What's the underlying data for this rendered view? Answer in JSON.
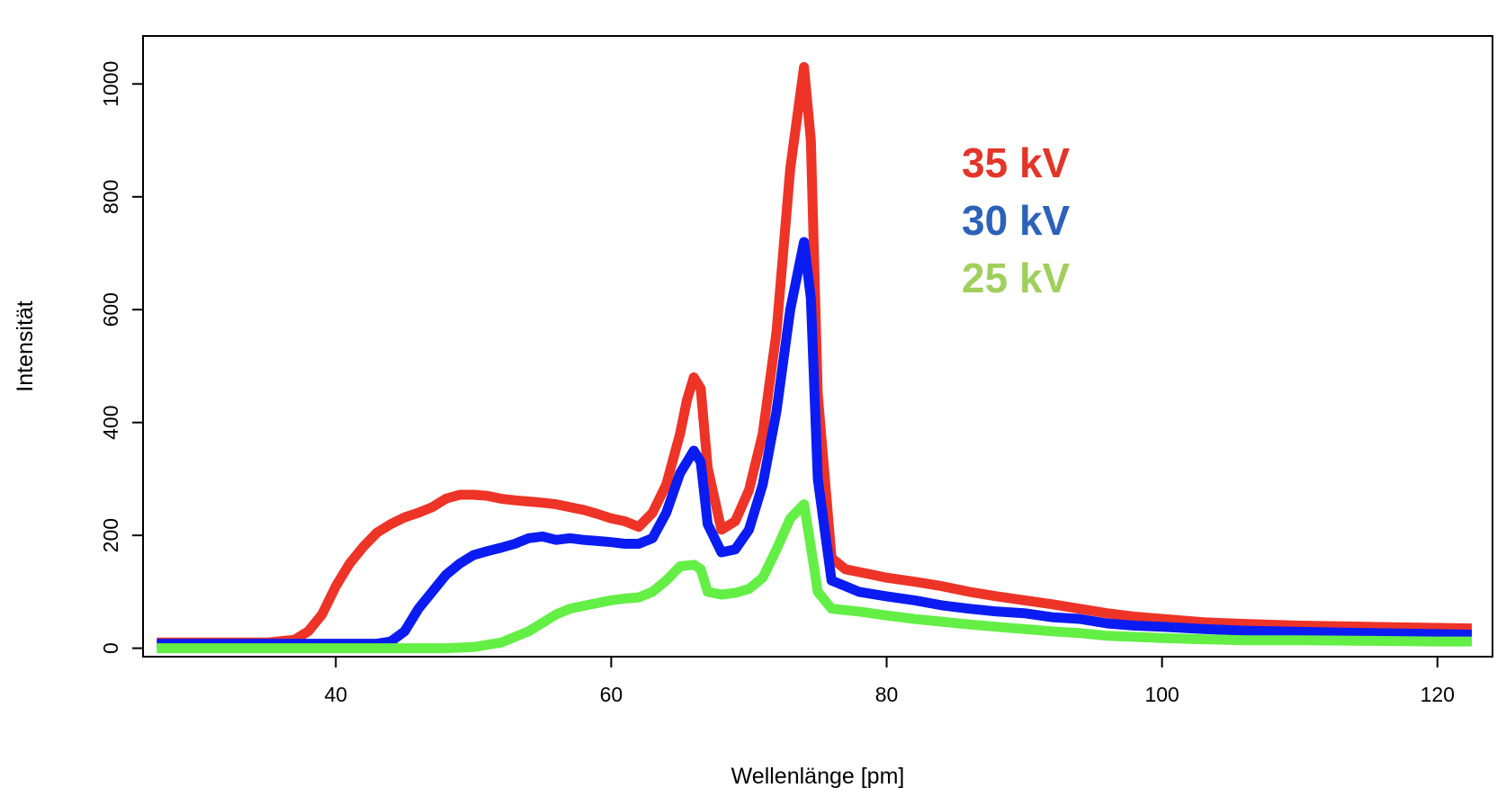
{
  "chart_data": {
    "type": "line",
    "title": "",
    "xlabel": "Wellenlänge [pm]",
    "ylabel": "Intensität",
    "xlim": [
      26,
      124
    ],
    "ylim": [
      -15,
      1085
    ],
    "xticks": [
      40,
      60,
      80,
      100,
      120
    ],
    "yticks": [
      0,
      200,
      400,
      600,
      800,
      1000
    ],
    "xtick_labels": [
      "40",
      "60",
      "80",
      "100",
      "120"
    ],
    "ytick_labels": [
      "0",
      "200",
      "400",
      "600",
      "800",
      "1000"
    ],
    "grid": false,
    "legend_placement": "upper-center-right",
    "series": [
      {
        "name": "35 kV",
        "label_color": "#e33529",
        "line_color": "#ee3327",
        "points": [
          [
            27,
            10
          ],
          [
            30,
            10
          ],
          [
            33,
            10
          ],
          [
            35,
            10
          ],
          [
            37,
            15
          ],
          [
            38,
            30
          ],
          [
            39,
            60
          ],
          [
            40,
            110
          ],
          [
            41,
            150
          ],
          [
            42,
            180
          ],
          [
            43,
            205
          ],
          [
            44,
            220
          ],
          [
            45,
            232
          ],
          [
            46,
            240
          ],
          [
            47,
            250
          ],
          [
            48,
            265
          ],
          [
            49,
            272
          ],
          [
            50,
            272
          ],
          [
            51,
            270
          ],
          [
            52,
            265
          ],
          [
            53,
            262
          ],
          [
            54,
            260
          ],
          [
            55,
            258
          ],
          [
            56,
            255
          ],
          [
            57,
            250
          ],
          [
            58,
            245
          ],
          [
            59,
            238
          ],
          [
            60,
            230
          ],
          [
            61,
            225
          ],
          [
            62,
            215
          ],
          [
            63,
            240
          ],
          [
            64,
            290
          ],
          [
            65,
            380
          ],
          [
            65.5,
            440
          ],
          [
            66,
            480
          ],
          [
            66.5,
            460
          ],
          [
            67,
            320
          ],
          [
            68,
            210
          ],
          [
            69,
            225
          ],
          [
            70,
            280
          ],
          [
            71,
            380
          ],
          [
            72,
            560
          ],
          [
            73,
            850
          ],
          [
            74,
            1030
          ],
          [
            74.5,
            900
          ],
          [
            75,
            450
          ],
          [
            76,
            160
          ],
          [
            77,
            140
          ],
          [
            78,
            135
          ],
          [
            79,
            130
          ],
          [
            80,
            125
          ],
          [
            82,
            118
          ],
          [
            84,
            110
          ],
          [
            86,
            100
          ],
          [
            88,
            92
          ],
          [
            90,
            85
          ],
          [
            92,
            78
          ],
          [
            94,
            70
          ],
          [
            96,
            62
          ],
          [
            98,
            56
          ],
          [
            100,
            52
          ],
          [
            103,
            46
          ],
          [
            106,
            43
          ],
          [
            110,
            40
          ],
          [
            115,
            38
          ],
          [
            120,
            36
          ],
          [
            122.5,
            35
          ]
        ]
      },
      {
        "name": "30 kV",
        "label_color": "#2d62b9",
        "line_color": "#0a1cf2",
        "points": [
          [
            27,
            8
          ],
          [
            30,
            8
          ],
          [
            35,
            8
          ],
          [
            40,
            8
          ],
          [
            43,
            8
          ],
          [
            44,
            12
          ],
          [
            45,
            30
          ],
          [
            46,
            70
          ],
          [
            47,
            100
          ],
          [
            48,
            130
          ],
          [
            49,
            150
          ],
          [
            50,
            165
          ],
          [
            51,
            172
          ],
          [
            52,
            178
          ],
          [
            53,
            185
          ],
          [
            54,
            195
          ],
          [
            55,
            198
          ],
          [
            56,
            192
          ],
          [
            57,
            195
          ],
          [
            58,
            192
          ],
          [
            59,
            190
          ],
          [
            60,
            188
          ],
          [
            61,
            185
          ],
          [
            62,
            185
          ],
          [
            63,
            195
          ],
          [
            64,
            240
          ],
          [
            65,
            310
          ],
          [
            66,
            350
          ],
          [
            66.5,
            330
          ],
          [
            67,
            220
          ],
          [
            68,
            170
          ],
          [
            69,
            175
          ],
          [
            70,
            210
          ],
          [
            71,
            290
          ],
          [
            72,
            420
          ],
          [
            73,
            600
          ],
          [
            74,
            720
          ],
          [
            74.5,
            620
          ],
          [
            75,
            300
          ],
          [
            76,
            120
          ],
          [
            77,
            110
          ],
          [
            78,
            100
          ],
          [
            80,
            92
          ],
          [
            82,
            85
          ],
          [
            84,
            76
          ],
          [
            86,
            70
          ],
          [
            88,
            65
          ],
          [
            90,
            62
          ],
          [
            92,
            55
          ],
          [
            94,
            52
          ],
          [
            96,
            44
          ],
          [
            98,
            40
          ],
          [
            100,
            38
          ],
          [
            103,
            34
          ],
          [
            106,
            31
          ],
          [
            110,
            29
          ],
          [
            115,
            27
          ],
          [
            120,
            25
          ],
          [
            122.5,
            24
          ]
        ]
      },
      {
        "name": "25 kV",
        "label_color": "#9fd05c",
        "line_color": "#63ef45",
        "points": [
          [
            27,
            0
          ],
          [
            30,
            0
          ],
          [
            40,
            0
          ],
          [
            48,
            0
          ],
          [
            50,
            2
          ],
          [
            52,
            10
          ],
          [
            54,
            30
          ],
          [
            55,
            45
          ],
          [
            56,
            60
          ],
          [
            57,
            70
          ],
          [
            58,
            75
          ],
          [
            59,
            80
          ],
          [
            60,
            85
          ],
          [
            61,
            88
          ],
          [
            62,
            90
          ],
          [
            63,
            100
          ],
          [
            64,
            120
          ],
          [
            65,
            145
          ],
          [
            66,
            148
          ],
          [
            66.5,
            140
          ],
          [
            67,
            100
          ],
          [
            68,
            95
          ],
          [
            69,
            98
          ],
          [
            70,
            105
          ],
          [
            71,
            125
          ],
          [
            72,
            175
          ],
          [
            73,
            230
          ],
          [
            74,
            255
          ],
          [
            74.5,
            180
          ],
          [
            75,
            100
          ],
          [
            76,
            70
          ],
          [
            78,
            65
          ],
          [
            80,
            58
          ],
          [
            82,
            52
          ],
          [
            84,
            47
          ],
          [
            86,
            42
          ],
          [
            88,
            38
          ],
          [
            90,
            34
          ],
          [
            92,
            30
          ],
          [
            94,
            27
          ],
          [
            96,
            22
          ],
          [
            98,
            20
          ],
          [
            100,
            18
          ],
          [
            103,
            16
          ],
          [
            106,
            14
          ],
          [
            110,
            14
          ],
          [
            115,
            13
          ],
          [
            120,
            12
          ],
          [
            122.5,
            12
          ]
        ]
      }
    ]
  }
}
